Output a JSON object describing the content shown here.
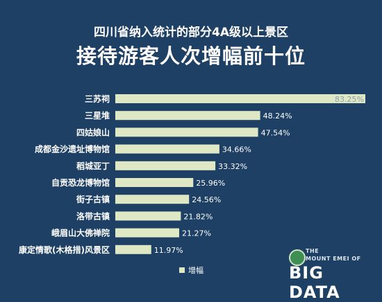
{
  "header": {
    "subtitle": "四川省纳入统计的部分4A级以上景区",
    "title": "接待游客人次增幅前十位"
  },
  "legend": {
    "label": "增幅",
    "color": "#dfe8c4"
  },
  "watermark": {
    "line1": "THE",
    "line2": "MOUNT EMEI OF",
    "line3": "BIG DATA"
  },
  "colors": {
    "background": "#1e4064",
    "bar": "#dfe8c4",
    "text": "#ffffff"
  },
  "chart_data": {
    "type": "bar",
    "orientation": "horizontal",
    "categories": [
      "三苏祠",
      "三星堆",
      "四姑娘山",
      "成都金沙遗址博物馆",
      "稻城亚丁",
      "自贡恐龙博物馆",
      "街子古镇",
      "洛带古镇",
      "峨眉山大佛禅院",
      "康定情歌(木格措)风景区"
    ],
    "series": [
      {
        "name": "增幅",
        "values": [
          83.25,
          48.24,
          47.54,
          34.66,
          33.32,
          25.96,
          24.56,
          21.82,
          21.27,
          11.97
        ],
        "labels": [
          "83.25%",
          "48.24%",
          "47.54%",
          "34.66%",
          "33.32%",
          "25.96%",
          "24.56%",
          "21.82%",
          "21.27%",
          "11.97%"
        ]
      }
    ],
    "grid": false,
    "legend_position": "bottom"
  }
}
